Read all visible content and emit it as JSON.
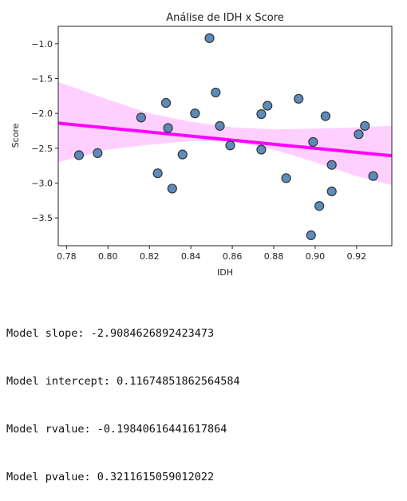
{
  "chart_data": {
    "type": "scatter",
    "title": "Análise de IDH x Score",
    "xlabel": "IDH",
    "ylabel": "Score",
    "xlim": [
      0.776,
      0.937
    ],
    "ylim": [
      -3.9,
      -0.75
    ],
    "xticks": [
      "0.78",
      "0.80",
      "0.82",
      "0.84",
      "0.86",
      "0.88",
      "0.90",
      "0.92"
    ],
    "yticks": [
      "−1.0",
      "−1.5",
      "−2.0",
      "−2.5",
      "−3.0",
      "−3.5"
    ],
    "xtick_values": [
      0.78,
      0.8,
      0.82,
      0.84,
      0.86,
      0.88,
      0.9,
      0.92
    ],
    "ytick_values": [
      -1.0,
      -1.5,
      -2.0,
      -2.5,
      -3.0,
      -3.5
    ],
    "grid": false,
    "colors": {
      "points": "#4a7fb5",
      "points_edge": "#333333",
      "line": "#ff00ff",
      "band": "#ffc8ff"
    },
    "points": [
      {
        "x": 0.786,
        "y": -2.6
      },
      {
        "x": 0.795,
        "y": -2.57
      },
      {
        "x": 0.816,
        "y": -2.06
      },
      {
        "x": 0.824,
        "y": -2.86
      },
      {
        "x": 0.828,
        "y": -1.85
      },
      {
        "x": 0.829,
        "y": -2.21
      },
      {
        "x": 0.831,
        "y": -3.08
      },
      {
        "x": 0.836,
        "y": -2.59
      },
      {
        "x": 0.842,
        "y": -2.0
      },
      {
        "x": 0.849,
        "y": -0.92
      },
      {
        "x": 0.852,
        "y": -1.7
      },
      {
        "x": 0.854,
        "y": -2.18
      },
      {
        "x": 0.859,
        "y": -2.46
      },
      {
        "x": 0.874,
        "y": -2.52
      },
      {
        "x": 0.874,
        "y": -2.01
      },
      {
        "x": 0.877,
        "y": -1.89
      },
      {
        "x": 0.886,
        "y": -2.93
      },
      {
        "x": 0.892,
        "y": -1.79
      },
      {
        "x": 0.898,
        "y": -3.75
      },
      {
        "x": 0.899,
        "y": -2.41
      },
      {
        "x": 0.902,
        "y": -3.33
      },
      {
        "x": 0.905,
        "y": -2.04
      },
      {
        "x": 0.908,
        "y": -2.74
      },
      {
        "x": 0.908,
        "y": -3.12
      },
      {
        "x": 0.921,
        "y": -2.3
      },
      {
        "x": 0.924,
        "y": -2.18
      },
      {
        "x": 0.928,
        "y": -2.9
      }
    ],
    "regression": {
      "slope": -2.9084626892423473,
      "intercept": 0.11674851862564584
    },
    "confidence_band": [
      {
        "x": 0.776,
        "upper": -1.55,
        "lower": -2.7
      },
      {
        "x": 0.8,
        "upper": -1.8,
        "lower": -2.52
      },
      {
        "x": 0.82,
        "upper": -2.0,
        "lower": -2.45
      },
      {
        "x": 0.84,
        "upper": -2.12,
        "lower": -2.4
      },
      {
        "x": 0.86,
        "upper": -2.2,
        "lower": -2.4
      },
      {
        "x": 0.88,
        "upper": -2.23,
        "lower": -2.52
      },
      {
        "x": 0.9,
        "upper": -2.22,
        "lower": -2.7
      },
      {
        "x": 0.92,
        "upper": -2.2,
        "lower": -2.9
      },
      {
        "x": 0.937,
        "upper": -2.18,
        "lower": -3.03
      }
    ]
  },
  "output_lines": [
    "Model slope: -2.9084626892423473",
    "Model intercept: 0.11674851862564584",
    "Model rvalue: -0.19840616441617864",
    "Model pvalue: 0.3211615059012022"
  ]
}
